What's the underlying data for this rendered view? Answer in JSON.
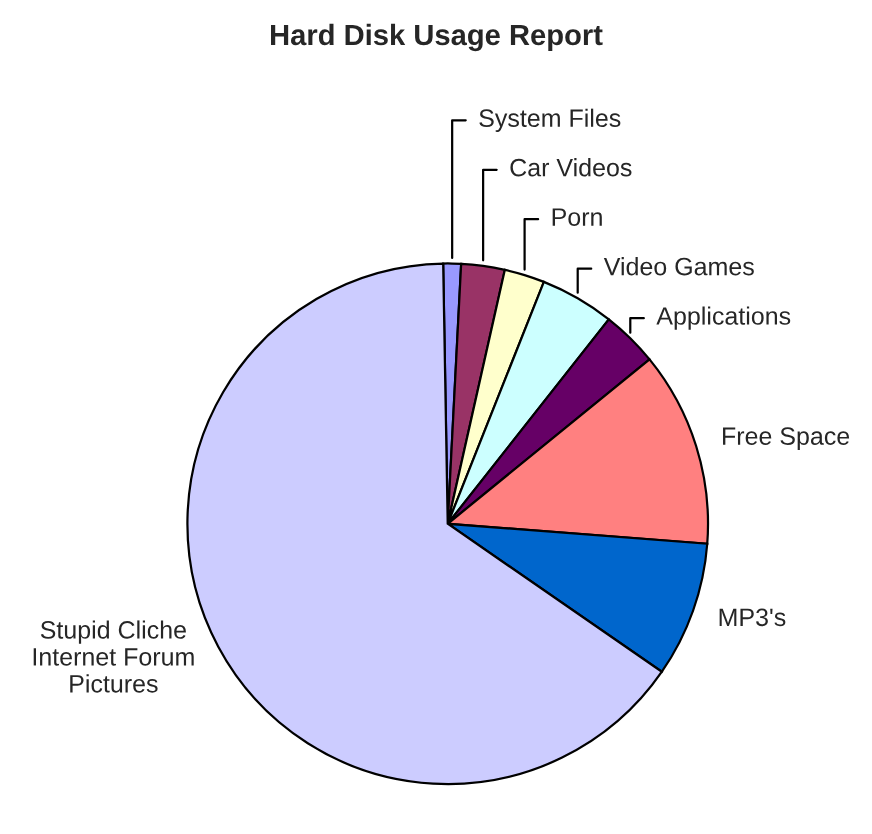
{
  "chart_data": {
    "type": "pie",
    "title": "Hard Disk Usage Report",
    "categories": [
      "System Files",
      "Car Videos",
      "Porn",
      "Video Games",
      "Applications",
      "Free Space",
      "MP3's",
      "Stupid Cliche\nInternet Forum\nPictures"
    ],
    "values": [
      1.1,
      2.7,
      2.5,
      4.6,
      3.5,
      12.1,
      8.4,
      65.1
    ],
    "colors": [
      "#9999ff",
      "#993366",
      "#ffffcc",
      "#ccffff",
      "#660066",
      "#ff8080",
      "#0066cc",
      "#ccccff"
    ],
    "legend": false
  }
}
